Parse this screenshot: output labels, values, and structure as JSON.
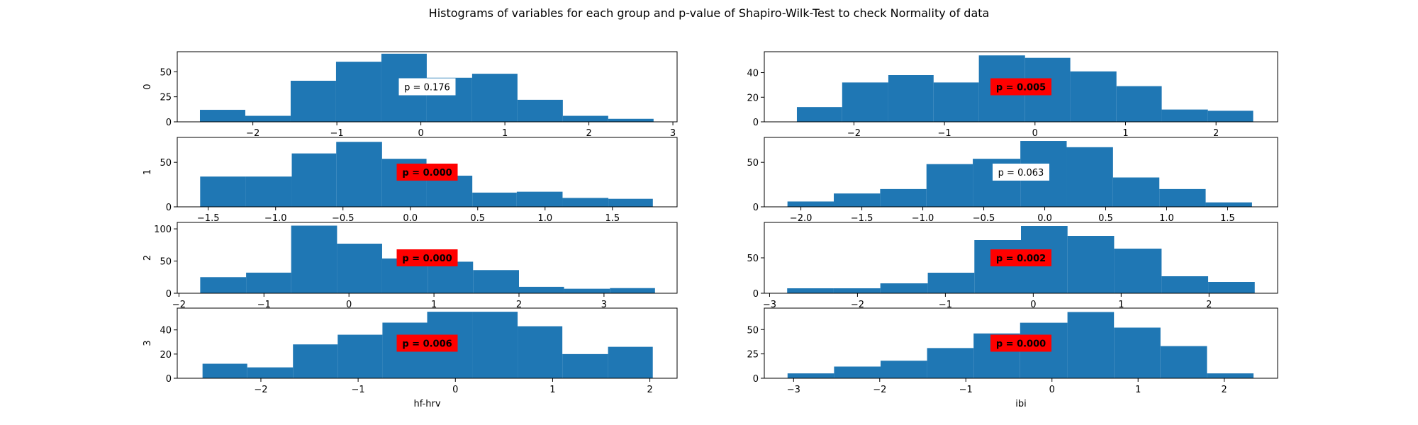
{
  "title": "Histograms of variables for each group and p-value of Shapiro-Wilk-Test to check Normality of data",
  "colors": {
    "bar": "#1f77b4",
    "sig": "#ff0000",
    "nonsig": "#ffffff"
  },
  "chart_data": [
    {
      "type": "bar",
      "row": 0,
      "col": 0,
      "ylabel": "0",
      "xlabel": "",
      "xlim": [
        -2.9,
        3.05
      ],
      "ylim": [
        0,
        70
      ],
      "xticks": [
        -2,
        -1,
        0,
        1,
        2,
        3
      ],
      "xtick_labels": [
        "−2",
        "−1",
        "0",
        "1",
        "2",
        "3"
      ],
      "yticks": [
        0,
        25,
        50
      ],
      "ytick_labels": [
        "0",
        "25",
        "50"
      ],
      "bin_edges": [
        -2.63,
        -2.09,
        -1.55,
        -1.01,
        -0.47,
        0.07,
        0.61,
        1.15,
        1.69,
        2.23,
        2.77
      ],
      "counts": [
        12,
        6,
        41,
        60,
        68,
        44,
        48,
        22,
        6,
        3
      ],
      "p_label": "p = 0.176",
      "significant": false
    },
    {
      "type": "bar",
      "row": 0,
      "col": 1,
      "ylabel": "",
      "xlabel": "",
      "xlim": [
        -2.99,
        2.68
      ],
      "ylim": [
        0,
        57
      ],
      "xticks": [
        -2,
        -1,
        0,
        1,
        2
      ],
      "xtick_labels": [
        "−2",
        "−1",
        "0",
        "1",
        "2"
      ],
      "yticks": [
        0,
        20,
        40
      ],
      "ytick_labels": [
        "0",
        "20",
        "40"
      ],
      "bin_edges": [
        -2.63,
        -2.13,
        -1.62,
        -1.12,
        -0.62,
        -0.11,
        0.39,
        0.9,
        1.4,
        1.91,
        2.41
      ],
      "counts": [
        12,
        32,
        38,
        32,
        54,
        52,
        41,
        29,
        10,
        9
      ],
      "p_label": "p = 0.005",
      "significant": true
    },
    {
      "type": "bar",
      "row": 1,
      "col": 0,
      "ylabel": "1",
      "xlabel": "",
      "xlim": [
        -1.73,
        1.98
      ],
      "ylim": [
        0,
        78
      ],
      "xticks": [
        -1.5,
        -1.0,
        -0.5,
        0.0,
        0.5,
        1.0,
        1.5
      ],
      "xtick_labels": [
        "−1.5",
        "−1.0",
        "−0.5",
        "0.0",
        "0.5",
        "1.0",
        "1.5"
      ],
      "yticks": [
        0,
        50
      ],
      "ytick_labels": [
        "0",
        "50"
      ],
      "bin_edges": [
        -1.56,
        -1.22,
        -0.88,
        -0.55,
        -0.21,
        0.12,
        0.46,
        0.79,
        1.13,
        1.47,
        1.8
      ],
      "counts": [
        34,
        34,
        60,
        73,
        54,
        35,
        16,
        17,
        10,
        9
      ],
      "p_label": "p = 0.000",
      "significant": true
    },
    {
      "type": "bar",
      "row": 1,
      "col": 1,
      "ylabel": "",
      "xlabel": "",
      "xlim": [
        -2.3,
        1.91
      ],
      "ylim": [
        0,
        78
      ],
      "xticks": [
        -2.0,
        -1.5,
        -1.0,
        -0.5,
        0.0,
        0.5,
        1.0,
        1.5
      ],
      "xtick_labels": [
        "−2.0",
        "−1.5",
        "−1.0",
        "−0.5",
        "0.0",
        "0.5",
        "1.0",
        "1.5"
      ],
      "yticks": [
        0,
        50
      ],
      "ytick_labels": [
        "0",
        "50"
      ],
      "bin_edges": [
        -2.11,
        -1.73,
        -1.35,
        -0.97,
        -0.59,
        -0.2,
        0.18,
        0.56,
        0.94,
        1.32,
        1.7
      ],
      "counts": [
        6,
        15,
        20,
        48,
        54,
        74,
        67,
        33,
        20,
        5
      ],
      "p_label": "p = 0.063",
      "significant": false
    },
    {
      "type": "bar",
      "row": 2,
      "col": 0,
      "ylabel": "2",
      "xlabel": "",
      "xlim": [
        -2.02,
        3.86
      ],
      "ylim": [
        0,
        110
      ],
      "xticks": [
        -2,
        -1,
        0,
        1,
        2,
        3
      ],
      "xtick_labels": [
        "−2",
        "−1",
        "0",
        "1",
        "2",
        "3"
      ],
      "yticks": [
        0,
        50,
        100
      ],
      "ytick_labels": [
        "0",
        "50",
        "100"
      ],
      "bin_edges": [
        -1.75,
        -1.21,
        -0.68,
        -0.14,
        0.39,
        0.93,
        1.46,
        2.0,
        2.53,
        3.07,
        3.6
      ],
      "counts": [
        25,
        32,
        105,
        77,
        54,
        49,
        36,
        10,
        7,
        8
      ],
      "p_label": "p = 0.000",
      "significant": true
    },
    {
      "type": "bar",
      "row": 2,
      "col": 1,
      "ylabel": "",
      "xlabel": "",
      "xlim": [
        -3.06,
        2.78
      ],
      "ylim": [
        0,
        100
      ],
      "xticks": [
        -3,
        -2,
        -1,
        0,
        1,
        2
      ],
      "xtick_labels": [
        "−3",
        "−2",
        "−1",
        "0",
        "1",
        "2"
      ],
      "yticks": [
        0,
        50
      ],
      "ytick_labels": [
        "0",
        "50"
      ],
      "bin_edges": [
        -2.8,
        -2.27,
        -1.74,
        -1.2,
        -0.67,
        -0.14,
        0.39,
        0.92,
        1.46,
        1.99,
        2.52
      ],
      "counts": [
        7,
        7,
        14,
        29,
        75,
        95,
        81,
        63,
        24,
        16
      ],
      "p_label": "p = 0.002",
      "significant": true
    },
    {
      "type": "bar",
      "row": 3,
      "col": 0,
      "ylabel": "3",
      "xlabel": "hf-hrv",
      "xlim": [
        -2.86,
        2.28
      ],
      "ylim": [
        0,
        58
      ],
      "xticks": [
        -2,
        -1,
        0,
        1,
        2
      ],
      "xtick_labels": [
        "−2",
        "−1",
        "0",
        "1",
        "2"
      ],
      "yticks": [
        0,
        20,
        40
      ],
      "ytick_labels": [
        "0",
        "20",
        "40"
      ],
      "bin_edges": [
        -2.6,
        -2.14,
        -1.67,
        -1.21,
        -0.75,
        -0.29,
        0.18,
        0.64,
        1.1,
        1.57,
        2.03
      ],
      "counts": [
        12,
        9,
        28,
        36,
        46,
        55,
        55,
        43,
        20,
        26
      ],
      "p_label": "p = 0.006",
      "significant": true
    },
    {
      "type": "bar",
      "row": 3,
      "col": 1,
      "ylabel": "",
      "xlabel": "ibi",
      "xlim": [
        -3.34,
        2.62
      ],
      "ylim": [
        0,
        72
      ],
      "xticks": [
        -3,
        -2,
        -1,
        0,
        1,
        2
      ],
      "xtick_labels": [
        "−3",
        "−2",
        "−1",
        "0",
        "1",
        "2"
      ],
      "yticks": [
        0,
        25,
        50
      ],
      "ytick_labels": [
        "0",
        "25",
        "50"
      ],
      "bin_edges": [
        -3.07,
        -2.53,
        -1.99,
        -1.45,
        -0.91,
        -0.37,
        0.18,
        0.72,
        1.26,
        1.8,
        2.34
      ],
      "counts": [
        5,
        12,
        18,
        31,
        46,
        57,
        68,
        52,
        33,
        5
      ],
      "p_label": "p = 0.000",
      "significant": true
    }
  ]
}
